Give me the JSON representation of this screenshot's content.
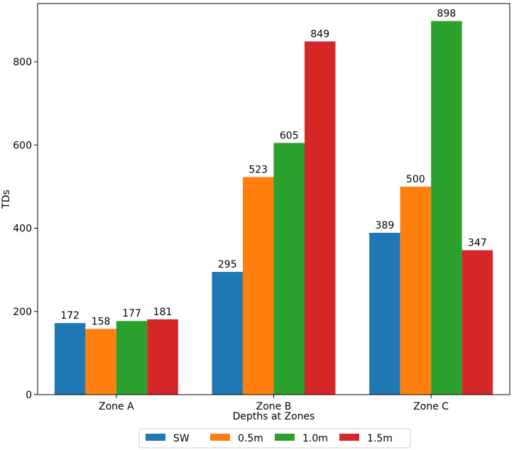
{
  "chart_data": {
    "type": "bar",
    "title": "",
    "xlabel": "Depths at Zones",
    "ylabel": "TDs",
    "categories": [
      "Zone A",
      "Zone B",
      "Zone C"
    ],
    "series": [
      {
        "name": "SW",
        "color": "#1f77b4",
        "values": [
          172,
          295,
          389
        ]
      },
      {
        "name": "0.5m",
        "color": "#ff7f0e",
        "values": [
          158,
          523,
          500
        ]
      },
      {
        "name": "1.0m",
        "color": "#2ca02c",
        "values": [
          177,
          605,
          898
        ]
      },
      {
        "name": "1.5m",
        "color": "#d62728",
        "values": [
          181,
          849,
          347
        ]
      }
    ],
    "ylim": [
      0,
      940
    ],
    "yticks": [
      0,
      200,
      400,
      600,
      800
    ],
    "grid": false,
    "legend_position": "bottom-center"
  }
}
